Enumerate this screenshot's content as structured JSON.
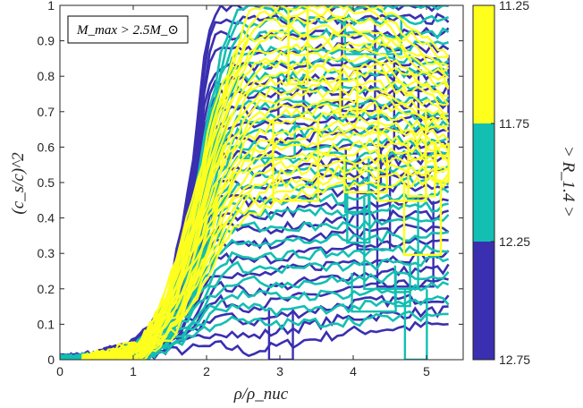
{
  "chart_data": {
    "type": "line",
    "xlabel": "ρ/ρ_nuc",
    "ylabel": "(c_s/c)^2",
    "xlim": [
      0,
      5.5
    ],
    "ylim": [
      0,
      1
    ],
    "xticks": [
      "0",
      "1",
      "2",
      "3",
      "4",
      "5"
    ],
    "yticks": [
      "0",
      "0.1",
      "0.2",
      "0.3",
      "0.4",
      "0.5",
      "0.6",
      "0.7",
      "0.8",
      "0.9",
      "1"
    ],
    "annotation": "M_max > 2.5M_⊙",
    "grid": false,
    "colorbar": {
      "label": "> R_1.4 >",
      "ticks": [
        "11.25",
        "11.75",
        "12.25",
        "12.75"
      ],
      "bands": [
        {
          "range": [
            11.25,
            11.75
          ],
          "color": "#ffff1e"
        },
        {
          "range": [
            11.75,
            12.25
          ],
          "color": "#13bfb2"
        },
        {
          "range": [
            12.25,
            12.75
          ],
          "color": "#3a2fb0"
        }
      ]
    },
    "series_groups": [
      {
        "band": "12.25–12.75",
        "color": "#3a2fb0",
        "envelope_upper": [
          [
            0,
            0
          ],
          [
            0.5,
            0.012
          ],
          [
            1.0,
            0.05
          ],
          [
            1.3,
            0.11
          ],
          [
            1.5,
            0.2
          ],
          [
            1.7,
            0.42
          ],
          [
            1.85,
            0.62
          ],
          [
            1.95,
            0.82
          ],
          [
            2.05,
            0.95
          ],
          [
            2.15,
            1.0
          ],
          [
            5.3,
            1.0
          ]
        ],
        "envelope_lower": [
          [
            0,
            0
          ],
          [
            1.0,
            0.01
          ],
          [
            2.2,
            0.04
          ],
          [
            2.6,
            0.02
          ],
          [
            3.0,
            0.04
          ],
          [
            4.0,
            0.08
          ],
          [
            5.3,
            0.1
          ]
        ]
      },
      {
        "band": "11.75–12.25",
        "color": "#13bfb2",
        "envelope_upper": [
          [
            0,
            0
          ],
          [
            0.8,
            0.012
          ],
          [
            1.2,
            0.07
          ],
          [
            1.5,
            0.19
          ],
          [
            1.8,
            0.42
          ],
          [
            2.0,
            0.66
          ],
          [
            2.2,
            0.86
          ],
          [
            2.4,
            0.99
          ],
          [
            5.3,
            1.0
          ]
        ],
        "envelope_lower": [
          [
            0,
            0
          ],
          [
            1.2,
            0.005
          ],
          [
            2.2,
            0.11
          ],
          [
            3.0,
            0.1
          ],
          [
            4.0,
            0.11
          ],
          [
            5.3,
            0.13
          ]
        ]
      },
      {
        "band": "11.25–11.75",
        "color": "#ffff1e",
        "envelope_upper": [
          [
            0.3,
            0
          ],
          [
            1.1,
            0.05
          ],
          [
            1.4,
            0.16
          ],
          [
            1.8,
            0.44
          ],
          [
            2.1,
            0.7
          ],
          [
            2.4,
            0.88
          ],
          [
            2.6,
            0.98
          ],
          [
            2.75,
            1.0
          ],
          [
            4.3,
            1.0
          ],
          [
            5.3,
            0.86
          ]
        ],
        "envelope_lower": [
          [
            0.3,
            0
          ],
          [
            1.1,
            0
          ],
          [
            1.6,
            0.08
          ],
          [
            2.0,
            0.23
          ],
          [
            2.4,
            0.38
          ],
          [
            3.0,
            0.45
          ],
          [
            4.0,
            0.5
          ],
          [
            5.0,
            0.5
          ],
          [
            5.3,
            0.5
          ]
        ]
      }
    ]
  }
}
